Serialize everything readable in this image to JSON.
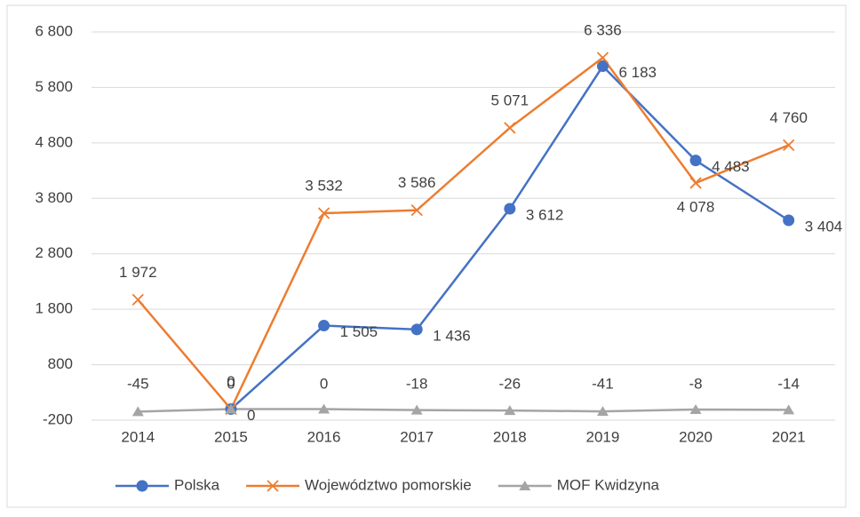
{
  "chart_data": {
    "type": "line",
    "categories": [
      "2014",
      "2015",
      "2016",
      "2017",
      "2018",
      "2019",
      "2020",
      "2021"
    ],
    "series": [
      {
        "name": "Polska",
        "color": "#4472c4",
        "marker": "circle",
        "values": [
          null,
          0,
          1505,
          1436,
          3612,
          6183,
          4483,
          3404
        ],
        "value_labels": [
          null,
          "0",
          "1 505",
          "1 436",
          "3 612",
          "6 183",
          "4 483",
          "3 404"
        ]
      },
      {
        "name": "Województwo pomorskie",
        "color": "#ed7d31",
        "marker": "x",
        "values": [
          1972,
          0,
          3532,
          3586,
          5071,
          6336,
          4078,
          4760
        ],
        "value_labels": [
          "1 972",
          "0",
          "3 532",
          "3 586",
          "5 071",
          "6 336",
          "4 078",
          "4 760"
        ]
      },
      {
        "name": "MOF Kwidzyna",
        "color": "#a5a5a5",
        "marker": "triangle",
        "values": [
          -45,
          0,
          0,
          -18,
          -26,
          -41,
          -8,
          -14
        ]
      }
    ],
    "ylim": [
      -200,
      6800
    ],
    "yticks": [
      -200,
      800,
      {
        "value": 1800,
        "label": "1 800"
      },
      {
        "value": 2800,
        "label": "2 800"
      },
      {
        "value": 3800,
        "label": "3 800"
      },
      {
        "value": 4800,
        "label": "4 800"
      },
      {
        "value": 5800,
        "label": "5 800"
      },
      {
        "value": 6800,
        "label": "6 800"
      }
    ],
    "grid": true,
    "legend": "bottom"
  }
}
